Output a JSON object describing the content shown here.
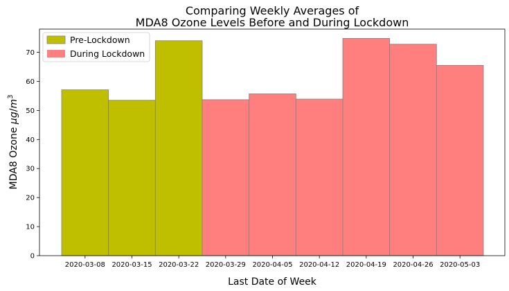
{
  "chart_data": {
    "type": "bar",
    "title_lines": [
      "Comparing Weekly Averages of",
      "MDA8 Ozone Levels Before and During Lockdown"
    ],
    "xlabel": "Last Date of Week",
    "ylabel_prefix": "MDA8 Ozone ",
    "ylabel_unit_mu": "μ",
    "ylabel_unit_g": "g",
    "ylabel_unit_slash": "/",
    "ylabel_unit_m": "m",
    "ylabel_unit_exp": "3",
    "categories": [
      "2020-03-08",
      "2020-03-15",
      "2020-03-22",
      "2020-03-29",
      "2020-04-05",
      "2020-04-12",
      "2020-04-19",
      "2020-04-26",
      "2020-05-03"
    ],
    "series": [
      {
        "name": "Pre-Lockdown",
        "color": "#bfbf00",
        "values": [
          57.1,
          53.5,
          74.0,
          null,
          null,
          null,
          null,
          null,
          null
        ]
      },
      {
        "name": "During Lockdown",
        "color": "#ff7f7f",
        "values": [
          null,
          null,
          null,
          53.7,
          55.7,
          53.9,
          74.8,
          72.8,
          65.5
        ]
      }
    ],
    "yticks": [
      "0",
      "10",
      "20",
      "30",
      "40",
      "50",
      "60",
      "70"
    ],
    "ylim": [
      0,
      78
    ],
    "grid": false,
    "legend_position": "top-left",
    "bar_edge_color": "#808080"
  }
}
